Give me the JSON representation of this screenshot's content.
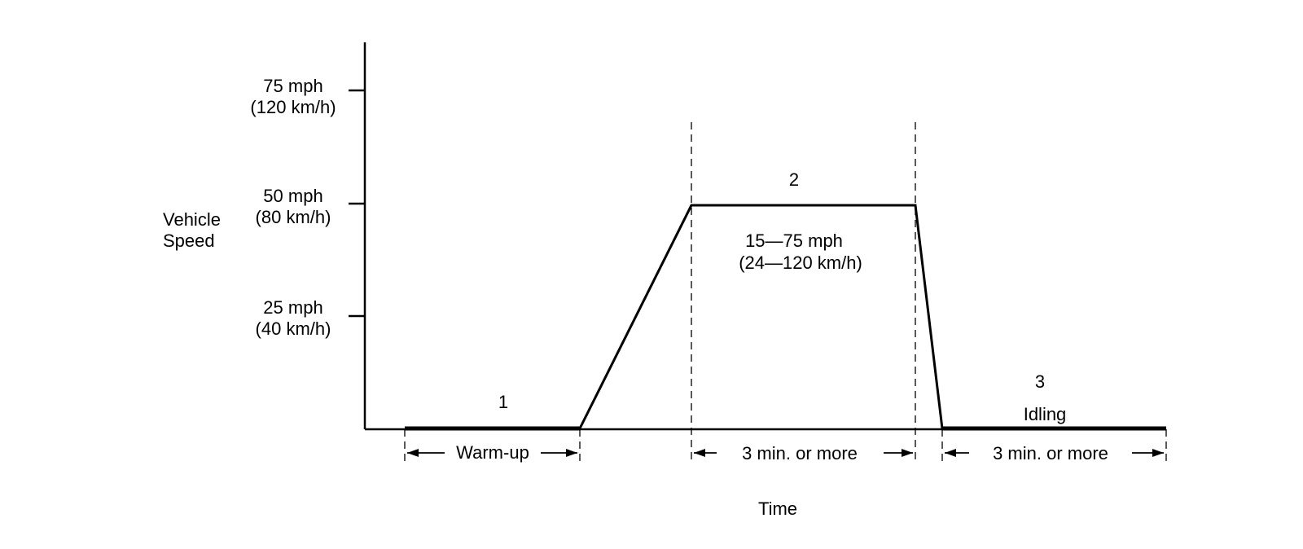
{
  "y_axis": {
    "title": [
      "Vehicle",
      "Speed"
    ],
    "ticks": [
      {
        "mph": "75 mph",
        "kmh": "(120 km/h)"
      },
      {
        "mph": "50 mph",
        "kmh": "(80 km/h)"
      },
      {
        "mph": "25 mph",
        "kmh": "(40 km/h)"
      }
    ]
  },
  "x_axis": {
    "title": "Time"
  },
  "phases": [
    {
      "number": "1",
      "note": "",
      "duration": "Warm-up"
    },
    {
      "number": "2",
      "note": "",
      "duration": "3 min. or more"
    },
    {
      "number": "3",
      "note": "Idling",
      "duration": "3 min. or more"
    }
  ],
  "cruise_range": {
    "mph": "15—75 mph",
    "kmh": "(24—120 km/h)"
  }
}
